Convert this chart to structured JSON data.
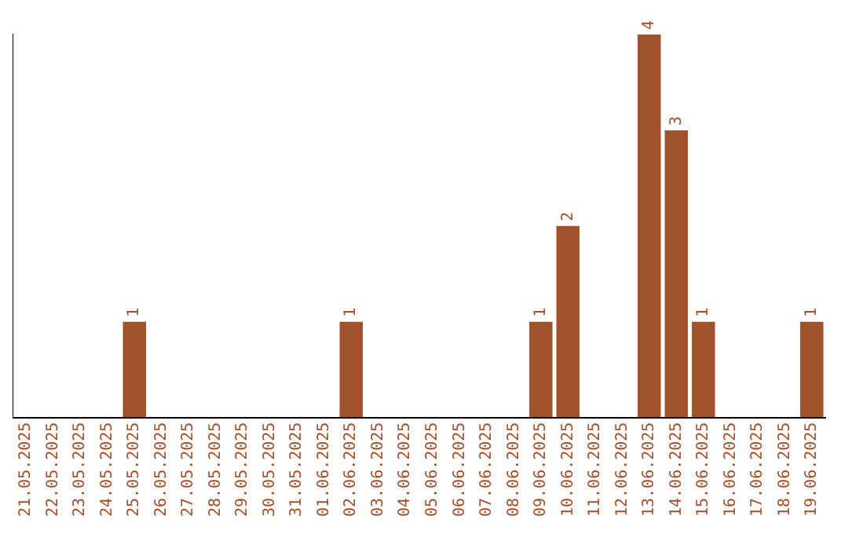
{
  "chart_data": {
    "type": "bar",
    "categories": [
      "21.05.2025",
      "22.05.2025",
      "23.05.2025",
      "24.05.2025",
      "25.05.2025",
      "26.05.2025",
      "27.05.2025",
      "28.05.2025",
      "29.05.2025",
      "30.05.2025",
      "31.05.2025",
      "01.06.2025",
      "02.06.2025",
      "03.06.2025",
      "04.06.2025",
      "05.06.2025",
      "06.06.2025",
      "07.06.2025",
      "08.06.2025",
      "09.06.2025",
      "10.06.2025",
      "11.06.2025",
      "12.06.2025",
      "13.06.2025",
      "14.06.2025",
      "15.06.2025",
      "16.06.2025",
      "17.06.2025",
      "18.06.2025",
      "19.06.2025"
    ],
    "values": [
      0,
      0,
      0,
      0,
      1,
      0,
      0,
      0,
      0,
      0,
      0,
      0,
      1,
      0,
      0,
      0,
      0,
      0,
      0,
      1,
      2,
      0,
      0,
      4,
      3,
      1,
      0,
      0,
      0,
      1
    ],
    "value_labels": [
      null,
      null,
      null,
      null,
      "1",
      null,
      null,
      null,
      null,
      null,
      null,
      null,
      "1",
      null,
      null,
      null,
      null,
      null,
      null,
      "1",
      "2",
      null,
      null,
      "4",
      "3",
      "1",
      null,
      null,
      null,
      "1"
    ],
    "color": "#a0522d",
    "tick_labels": "x",
    "grid": false,
    "legend": false
  }
}
